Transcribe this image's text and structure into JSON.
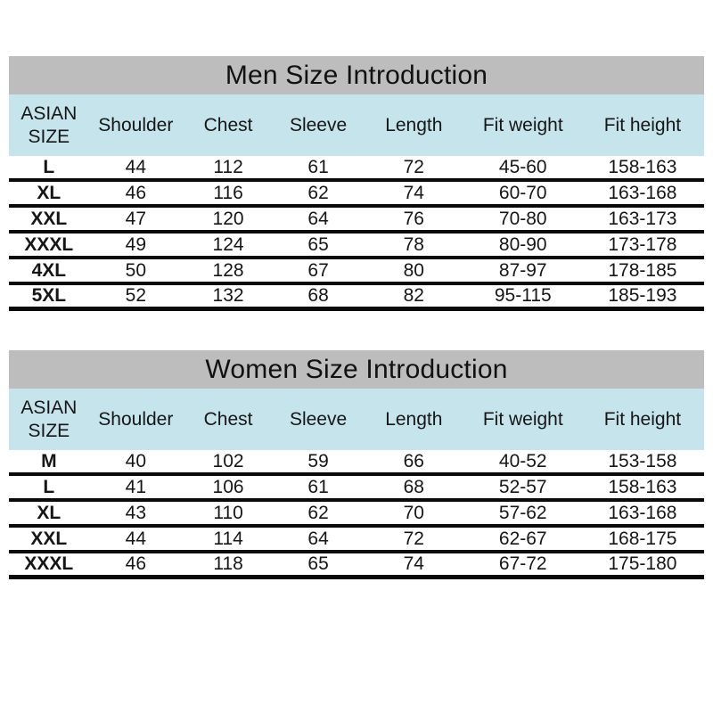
{
  "colors": {
    "page_bg": "#ffffff",
    "title_bg": "#bdbdbd",
    "header_bg": "#c6e4ec",
    "line": "#0a0a0a",
    "text": "#161616"
  },
  "columns": [
    "ASIAN SIZE",
    "Shoulder",
    "Chest",
    "Sleeve",
    "Length",
    "Fit weight",
    "Fit height"
  ],
  "men": {
    "title": "Men Size Introduction",
    "rows": [
      [
        "L",
        "44",
        "112",
        "61",
        "72",
        "45-60",
        "158-163"
      ],
      [
        "XL",
        "46",
        "116",
        "62",
        "74",
        "60-70",
        "163-168"
      ],
      [
        "XXL",
        "47",
        "120",
        "64",
        "76",
        "70-80",
        "163-173"
      ],
      [
        "XXXL",
        "49",
        "124",
        "65",
        "78",
        "80-90",
        "173-178"
      ],
      [
        "4XL",
        "50",
        "128",
        "67",
        "80",
        "87-97",
        "178-185"
      ],
      [
        "5XL",
        "52",
        "132",
        "68",
        "82",
        "95-115",
        "185-193"
      ]
    ]
  },
  "women": {
    "title": "Women Size Introduction",
    "rows": [
      [
        "M",
        "40",
        "102",
        "59",
        "66",
        "40-52",
        "153-158"
      ],
      [
        "L",
        "41",
        "106",
        "61",
        "68",
        "52-57",
        "158-163"
      ],
      [
        "XL",
        "43",
        "110",
        "62",
        "70",
        "57-62",
        "163-168"
      ],
      [
        "XXL",
        "44",
        "114",
        "64",
        "72",
        "62-67",
        "168-175"
      ],
      [
        "XXXL",
        "46",
        "118",
        "65",
        "74",
        "67-72",
        "175-180"
      ]
    ]
  }
}
